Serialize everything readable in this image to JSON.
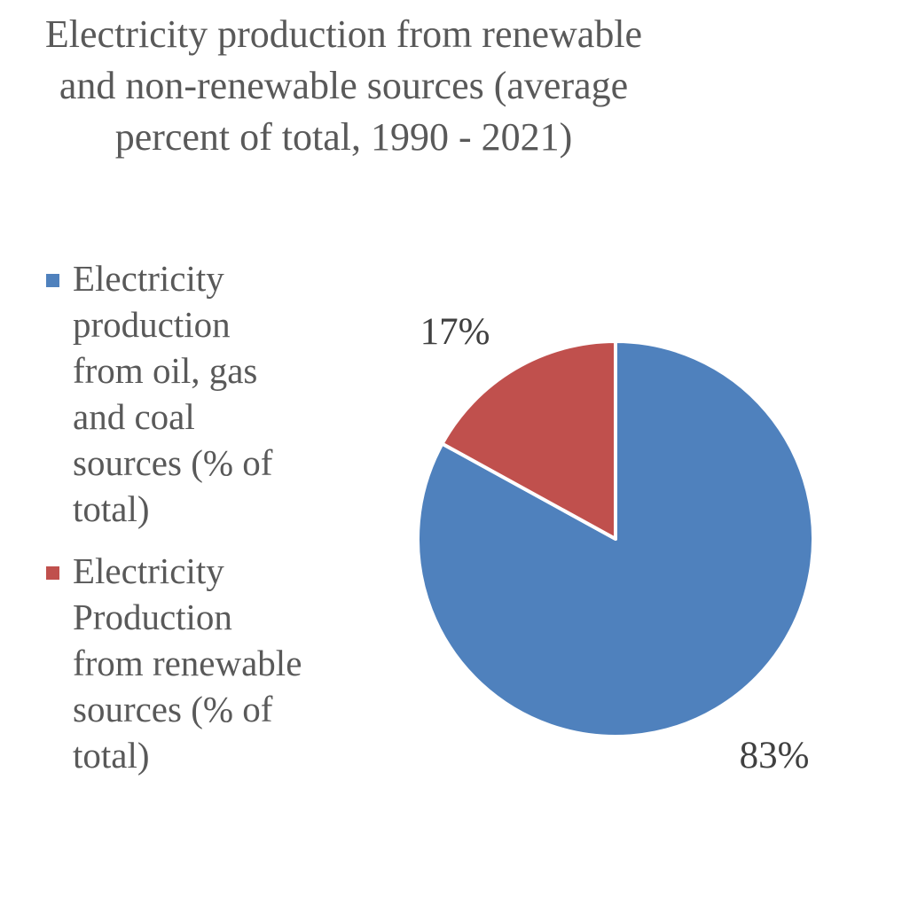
{
  "chart_data": {
    "type": "pie",
    "title_lines": [
      "Electricity production from renewable",
      "and non-renewable sources (average",
      "percent of total, 1990 - 2021)"
    ],
    "series": [
      {
        "name": "Electricity production from oil, gas and coal sources (% of total)",
        "legend_lines": [
          "Electricity",
          "production",
          "from oil, gas",
          "and coal",
          "sources (% of",
          "total)"
        ],
        "value": 83,
        "label": "83%",
        "color": "#4F81BD"
      },
      {
        "name": "Electricity Production from renewable sources (% of total)",
        "legend_lines": [
          "Electricity",
          "Production",
          "from renewable",
          "sources (% of",
          "total)"
        ],
        "value": 17,
        "label": "17%",
        "color": "#C0504D"
      }
    ],
    "legend_position": "left"
  }
}
